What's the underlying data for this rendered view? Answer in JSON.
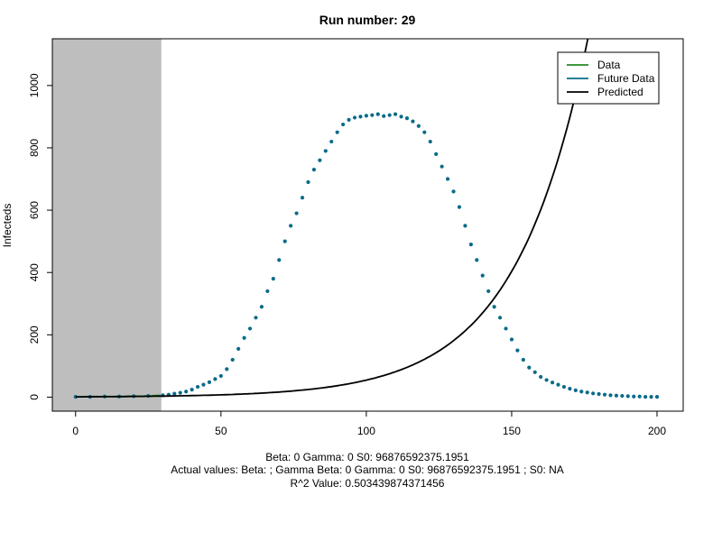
{
  "chart_data": {
    "type": "scatter",
    "title": "Run number:  29",
    "xlabel": "",
    "ylabel": "Infecteds",
    "xlim": [
      -8,
      209
    ],
    "ylim": [
      -45,
      1150
    ],
    "x_ticks": [
      0,
      50,
      100,
      150,
      200
    ],
    "y_ticks": [
      0,
      200,
      400,
      600,
      800,
      1000
    ],
    "shaded_region": {
      "x": [
        -8,
        29.5
      ],
      "color": "#bebebe"
    },
    "grid": false,
    "legend": {
      "placement": "top-right",
      "entries": [
        {
          "label": "Data",
          "color": "#228b22"
        },
        {
          "label": "Future Data",
          "color": "#0a6b8a"
        },
        {
          "label": "Predicted",
          "color": "#000000"
        }
      ]
    },
    "series": [
      {
        "name": "Data",
        "color": "#228b22",
        "style": "line",
        "x": [
          0,
          1,
          2,
          3,
          4,
          5,
          6,
          7,
          8,
          9,
          10,
          11,
          12,
          13,
          14,
          15,
          16,
          17,
          18,
          19,
          20,
          21,
          22,
          23,
          24,
          25,
          26,
          27,
          28,
          29
        ],
        "y": [
          1,
          1,
          1,
          1,
          2,
          2,
          2,
          2,
          2,
          2,
          2,
          2,
          2,
          2,
          2,
          2,
          2,
          2,
          3,
          3,
          3,
          3,
          3,
          3,
          4,
          4,
          4,
          5,
          5,
          6
        ]
      },
      {
        "name": "Future Data",
        "color": "#0a6b8a",
        "style": "points",
        "x": [
          0,
          5,
          10,
          15,
          20,
          25,
          30,
          32,
          34,
          36,
          38,
          40,
          42,
          44,
          46,
          48,
          50,
          52,
          54,
          56,
          58,
          60,
          62,
          64,
          66,
          68,
          70,
          72,
          74,
          76,
          78,
          80,
          82,
          84,
          86,
          88,
          90,
          92,
          94,
          96,
          98,
          100,
          102,
          104,
          106,
          108,
          110,
          112,
          114,
          116,
          118,
          120,
          122,
          124,
          126,
          128,
          130,
          132,
          134,
          136,
          138,
          140,
          142,
          144,
          146,
          148,
          150,
          152,
          154,
          156,
          158,
          160,
          162,
          164,
          166,
          168,
          170,
          172,
          174,
          176,
          178,
          180,
          182,
          184,
          186,
          188,
          190,
          192,
          194,
          196,
          198,
          200
        ],
        "y": [
          1,
          1,
          2,
          2,
          3,
          4,
          6,
          8,
          11,
          14,
          18,
          24,
          33,
          40,
          48,
          58,
          68,
          90,
          120,
          155,
          190,
          220,
          255,
          290,
          340,
          380,
          440,
          500,
          550,
          590,
          640,
          690,
          730,
          760,
          790,
          820,
          850,
          875,
          890,
          897,
          900,
          903,
          905,
          908,
          902,
          905,
          908,
          900,
          895,
          885,
          870,
          850,
          820,
          780,
          740,
          700,
          660,
          610,
          550,
          490,
          440,
          390,
          340,
          290,
          255,
          220,
          185,
          150,
          120,
          95,
          80,
          65,
          55,
          47,
          40,
          33,
          27,
          22,
          18,
          15,
          12,
          10,
          8,
          6,
          5,
          4,
          3,
          2,
          2,
          1,
          1,
          1
        ]
      },
      {
        "name": "Predicted",
        "color": "#000000",
        "style": "line",
        "fn": "exp",
        "a": 1.0,
        "b": 0.04
      }
    ]
  },
  "annotations": [
    "Beta:  0 Gamma:  0 S0:  96876592375.1951",
    "Actual values: Beta:    ; Gamma  Beta:  0 Gamma:  0 S0:  96876592375.1951 ; S0:  NA",
    "R^2 Value:  0.503439874371456"
  ]
}
